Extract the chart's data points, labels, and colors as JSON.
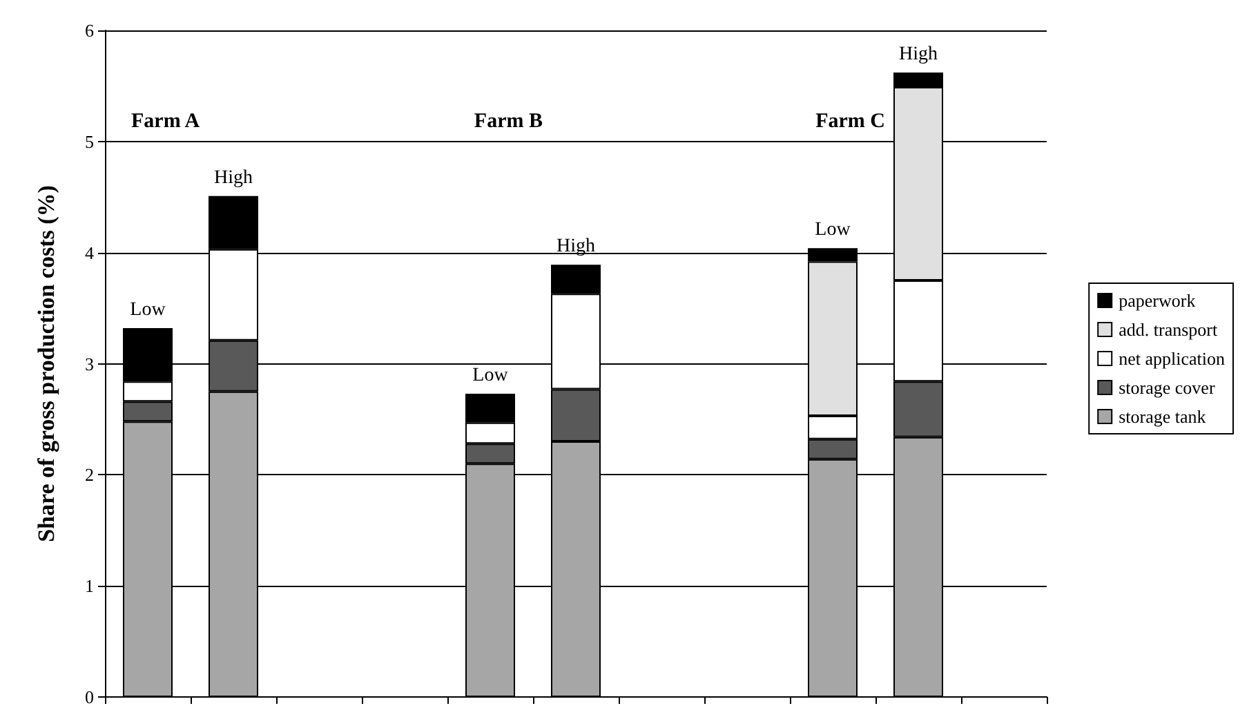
{
  "chart_data": {
    "type": "bar",
    "stacked": true,
    "ylabel": "Share of gross production costs (%)",
    "categories": [
      null,
      null,
      null,
      null,
      null,
      null,
      null,
      null,
      null,
      null,
      null
    ],
    "series": [
      {
        "name": "storage tank",
        "color": "#a6a6a6",
        "values": [
          2.48,
          2.75,
          null,
          null,
          2.1,
          2.3,
          null,
          null,
          2.14,
          2.34,
          null
        ]
      },
      {
        "name": "storage cover",
        "color": "#595959",
        "values": [
          0.18,
          0.46,
          null,
          null,
          0.18,
          0.47,
          null,
          null,
          0.18,
          0.5,
          null
        ]
      },
      {
        "name": "net application",
        "color": "#ffffff",
        "values": [
          0.18,
          0.82,
          null,
          null,
          0.19,
          0.86,
          null,
          null,
          0.21,
          0.91,
          null
        ]
      },
      {
        "name": "add. transport",
        "color": "#e0e0e0",
        "values": [
          null,
          null,
          null,
          null,
          null,
          null,
          null,
          null,
          1.39,
          1.74,
          null
        ]
      },
      {
        "name": "paperwork",
        "color": "#000000",
        "values": [
          0.48,
          0.48,
          null,
          null,
          0.26,
          0.26,
          null,
          null,
          0.12,
          0.13,
          null
        ]
      }
    ],
    "annotations": [
      "Farm A",
      "Farm B",
      "Farm C",
      {
        "text": "Low",
        "y": 3.32
      },
      {
        "text": "High",
        "y": 4.51
      },
      {
        "text": "Low",
        "y": 2.73
      },
      {
        "text": "High",
        "y": 3.89
      },
      {
        "text": "Low",
        "y": 4.04
      },
      {
        "text": "High",
        "y": 5.62
      }
    ],
    "ylim": [
      0,
      6
    ],
    "yticks": [
      0,
      1,
      2,
      3,
      4,
      5,
      6
    ],
    "grid": "y",
    "legend": "right",
    "tick_labels": "y"
  }
}
